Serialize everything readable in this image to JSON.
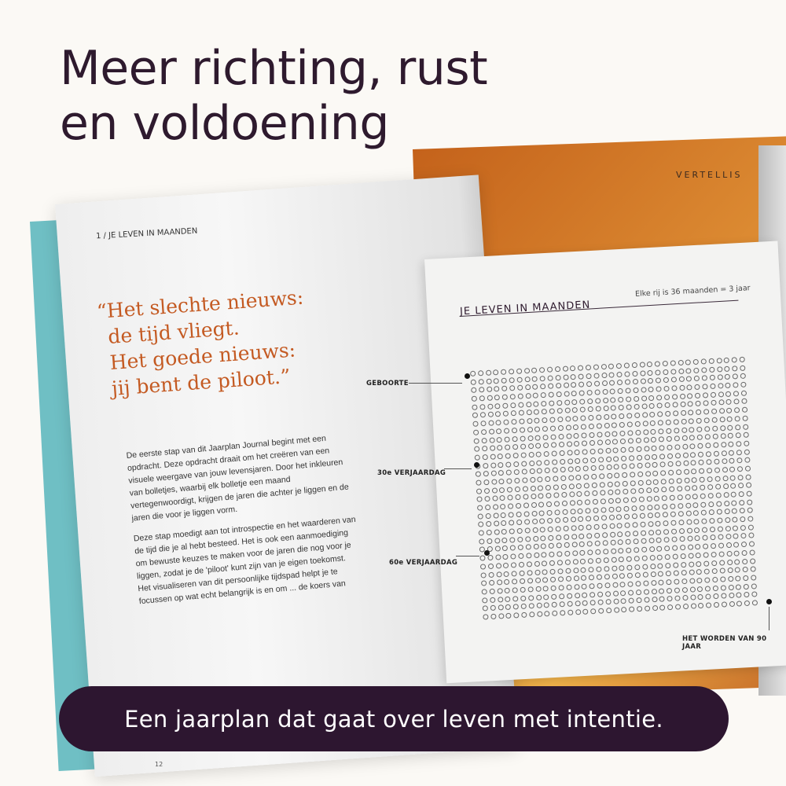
{
  "headline": {
    "line1": "Meer richting, rust",
    "line2": "en voldoening"
  },
  "book": {
    "brand": "VERTELLIS",
    "left_page": {
      "chapter": "1 / JE LEVEN IN MAANDEN",
      "quote": [
        "“Het slechte nieuws:",
        "de tijd vliegt.",
        "Het goede nieuws:",
        "jij bent de piloot.”"
      ],
      "paragraphs": [
        "De eerste stap van dit Jaarplan Journal begint met een opdracht. Deze opdracht draait om het creëren van een visuele weergave van jouw levensjaren. Door het inkleuren van bolletjes, waarbij elk bolletje een maand vertegenwoordigt, krijgen de jaren die achter je liggen en de jaren die voor je liggen vorm.",
        "Deze stap moedigt aan tot introspectie en het waarderen van de tijd die je al hebt besteed. Het is ook een aanmoediging om bewuste keuzes te maken voor de jaren die nog voor je liggen, zodat je de 'piloot' kunt zijn van je eigen toekomst. Het visualiseren van dit persoonlijke tijdspad helpt je te focussen op wat echt belangrijk is en om ... de koers van"
      ],
      "page_number": "12"
    },
    "right_page": {
      "title": "JE LEVEN IN MAANDEN",
      "subtitle": "Elke rij is 36 maanden = 3 jaar",
      "grid": {
        "columns": 36,
        "rows": 30
      },
      "labels": {
        "birth": "GEBOORTE",
        "age30": "30e VERJAARDAG",
        "age60": "60e VERJAARDAG",
        "age90": "HET WORDEN VAN 90 JAAR"
      }
    }
  },
  "banner": {
    "text": "Een jaarplan dat gaat over leven met intentie."
  },
  "colors": {
    "headline": "#2e1a2e",
    "banner": "#2d1630",
    "quote": "#c45a22",
    "cover": "#6fbfc4",
    "orange": "#de8e34"
  }
}
